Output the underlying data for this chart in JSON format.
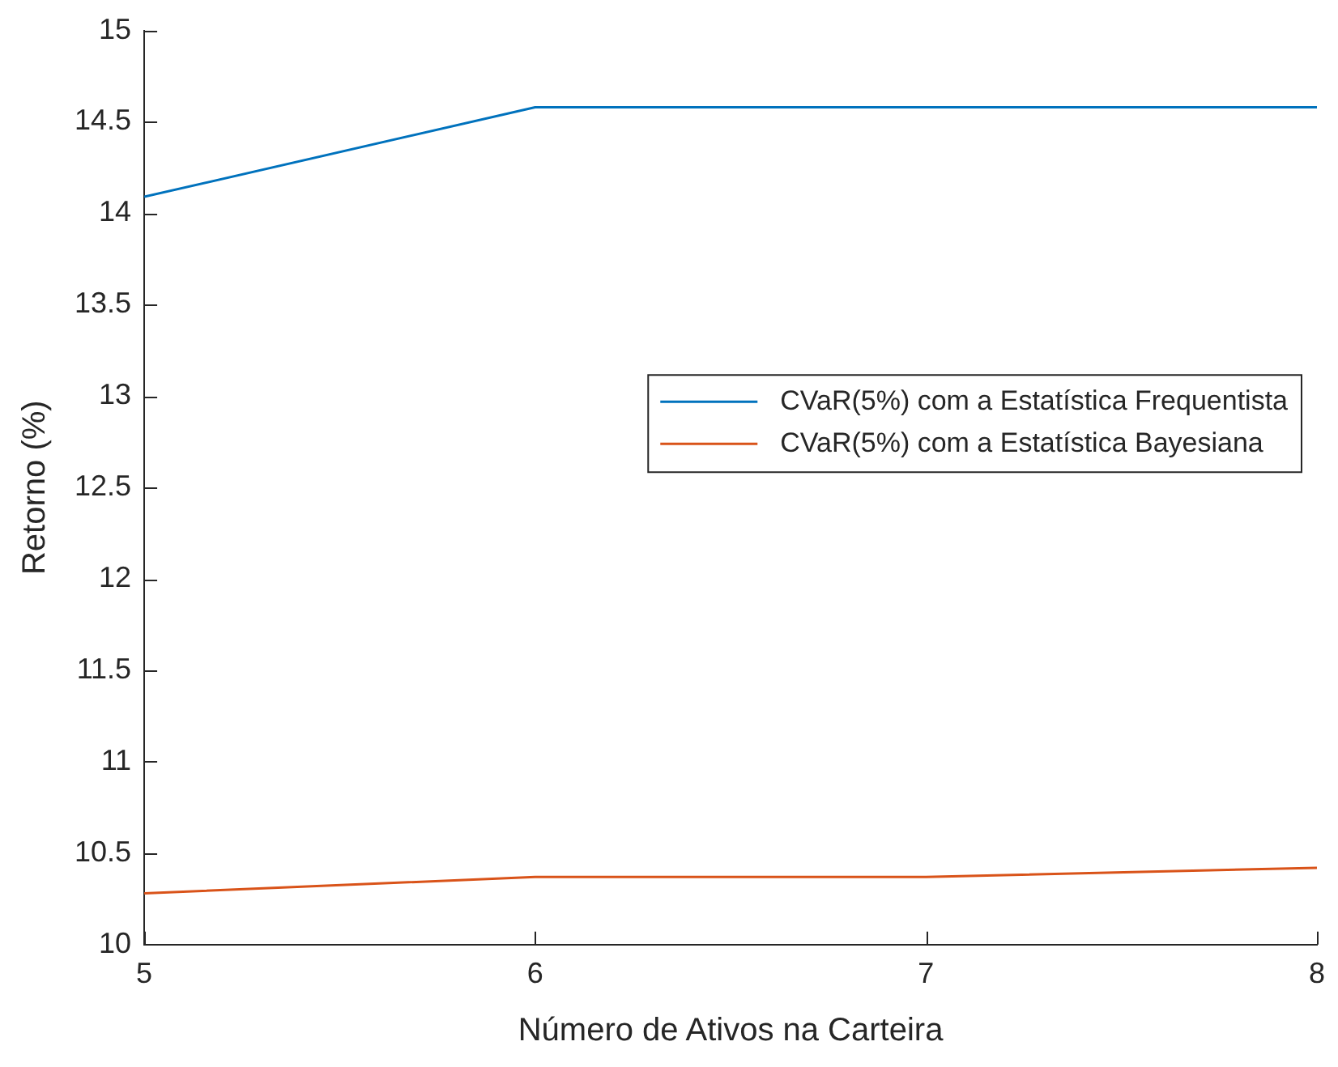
{
  "chart_data": {
    "type": "line",
    "xlabel": "Número de Ativos na Carteira",
    "ylabel": "Retorno (%)",
    "x": [
      5,
      6,
      7,
      8
    ],
    "series": [
      {
        "name": "CVaR(5%) com a Estatística Frequentista",
        "color": "#0072bd",
        "values": [
          14.09,
          14.58,
          14.58,
          14.58
        ]
      },
      {
        "name": "CVaR(5%) com a Estatística Bayesiana",
        "color": "#d95319",
        "values": [
          10.28,
          10.37,
          10.37,
          10.42
        ]
      }
    ],
    "xlim": [
      5,
      8
    ],
    "xticks": [
      5,
      6,
      7,
      8
    ],
    "ylim": [
      10,
      15
    ],
    "yticks": [
      10,
      10.5,
      11,
      11.5,
      12,
      12.5,
      13,
      13.5,
      14,
      14.5,
      15
    ],
    "grid": false,
    "legend": "right",
    "marker": "none",
    "line_style": "solid"
  }
}
